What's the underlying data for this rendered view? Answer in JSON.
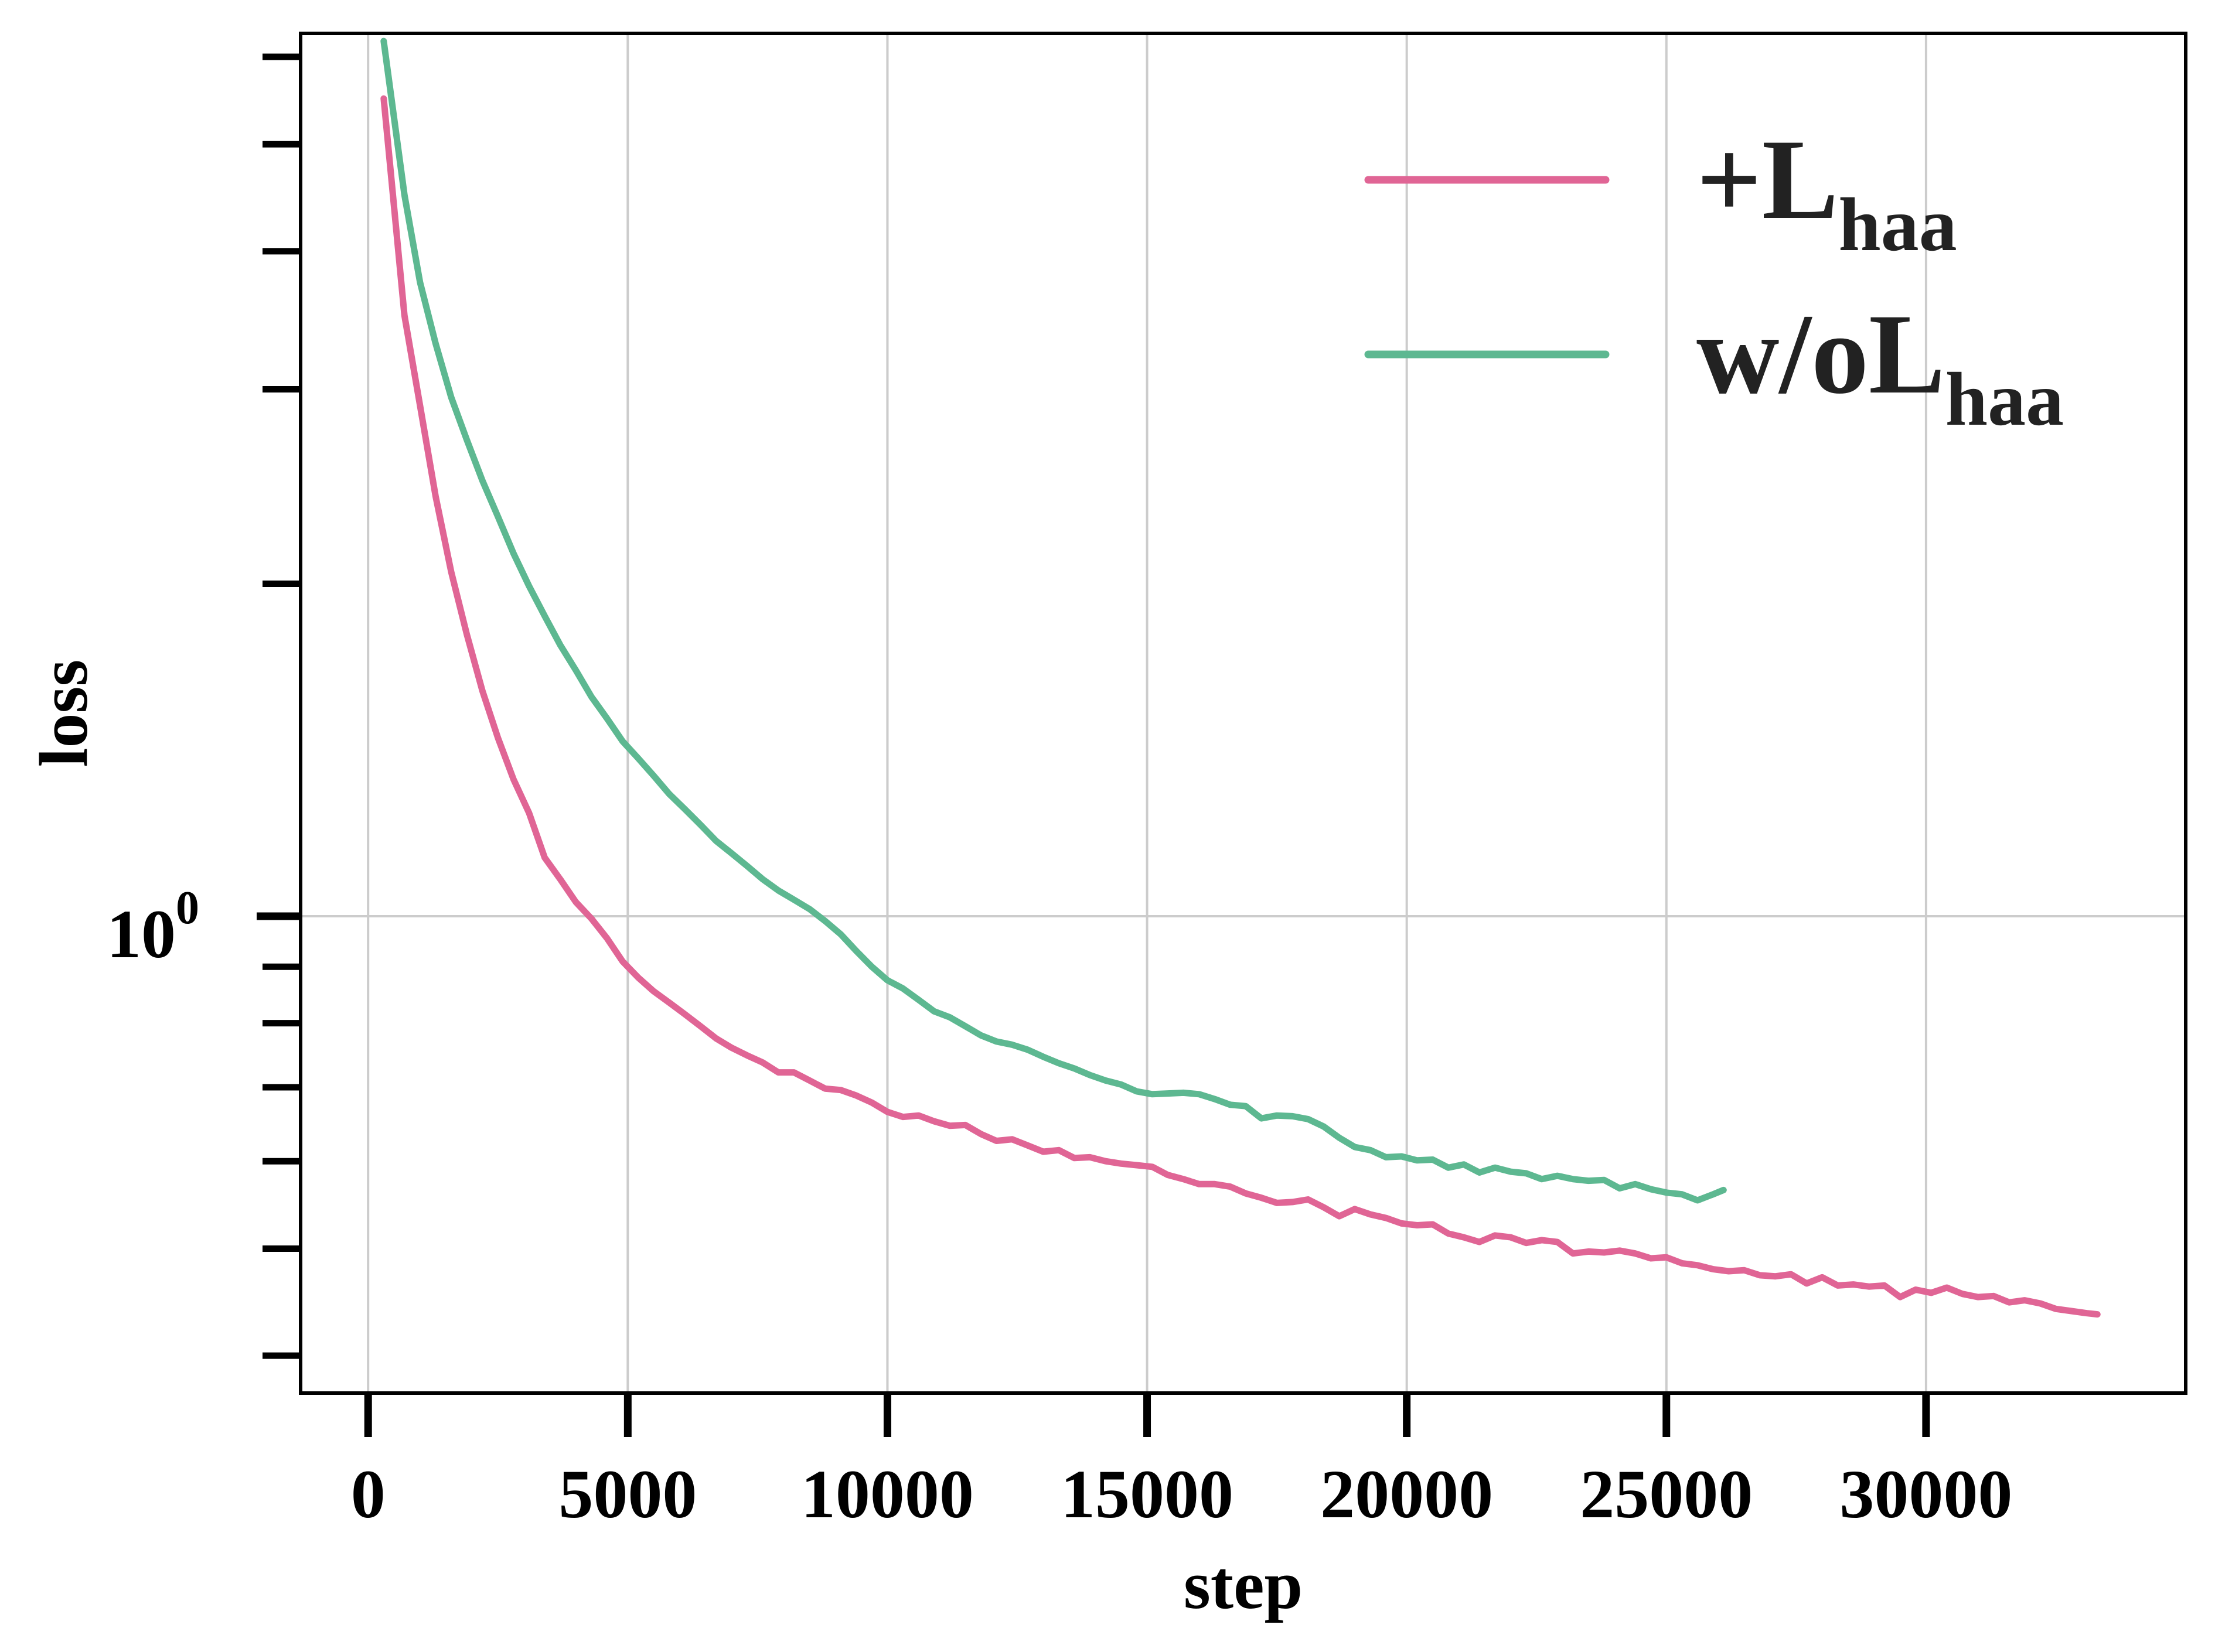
{
  "chart_data": {
    "type": "line",
    "xlabel": "step",
    "ylabel": "loss",
    "xlim": [
      -1300,
      35000
    ],
    "ylim": [
      0.37,
      6.3
    ],
    "y_scale": "log",
    "grid": true,
    "legend_position": "top-right",
    "x_ticks": [
      0,
      5000,
      10000,
      15000,
      20000,
      25000,
      30000
    ],
    "x_tick_labels": [
      "0",
      "5000",
      "10000",
      "15000",
      "20000",
      "25000",
      "30000"
    ],
    "y_major_tick": {
      "value": 1,
      "base": "10",
      "exponent": "0"
    },
    "y_minor_ticks": [
      0.4,
      0.5,
      0.6,
      0.7,
      0.8,
      0.9,
      2,
      3,
      4,
      5,
      6
    ],
    "series": [
      {
        "name": "+L",
        "name_subscript": "haa",
        "color": "#e06595",
        "x": [
          300,
          700,
          1000,
          1300,
          1600,
          1900,
          2200,
          2500,
          2800,
          3100,
          3400,
          3700,
          4000,
          4300,
          4600,
          4900,
          5200,
          5500,
          5800,
          6100,
          6400,
          6700,
          7000,
          7300,
          7600,
          7900,
          8200,
          8500,
          8800,
          9100,
          9400,
          9700,
          10000,
          10300,
          10600,
          10900,
          11200,
          11500,
          11800,
          12100,
          12400,
          12700,
          13000,
          13300,
          13600,
          13900,
          14200,
          14500,
          14800,
          15100,
          15400,
          15700,
          16000,
          16300,
          16600,
          16900,
          17200,
          17500,
          17800,
          18100,
          18400,
          18700,
          19000,
          19300,
          19600,
          19900,
          20200,
          20500,
          20800,
          21100,
          21400,
          21700,
          22000,
          22300,
          22600,
          22900,
          23200,
          23500,
          23800,
          24100,
          24400,
          24700,
          25000,
          25300,
          25600,
          25900,
          26200,
          26500,
          26800,
          27100,
          27400,
          27700,
          28000,
          28300,
          28600,
          28900,
          29200,
          29500,
          29800,
          30100,
          30400,
          30700,
          31000,
          31300,
          31600,
          31900,
          32200,
          32500,
          32800,
          33100,
          33300
        ],
        "values": [
          5.5,
          3.5,
          2.9,
          2.4,
          2.05,
          1.8,
          1.6,
          1.45,
          1.33,
          1.24,
          1.13,
          1.08,
          1.03,
          0.995,
          0.955,
          0.91,
          0.88,
          0.855,
          0.835,
          0.815,
          0.795,
          0.775,
          0.76,
          0.748,
          0.737,
          0.722,
          0.722,
          0.71,
          0.698,
          0.696,
          0.688,
          0.678,
          0.665,
          0.658,
          0.66,
          0.652,
          0.646,
          0.647,
          0.635,
          0.626,
          0.628,
          0.62,
          0.612,
          0.614,
          0.604,
          0.605,
          0.6,
          0.597,
          0.595,
          0.593,
          0.583,
          0.578,
          0.572,
          0.572,
          0.569,
          0.561,
          0.556,
          0.55,
          0.551,
          0.554,
          0.545,
          0.535,
          0.543,
          0.537,
          0.533,
          0.527,
          0.525,
          0.526,
          0.516,
          0.512,
          0.507,
          0.514,
          0.512,
          0.506,
          0.509,
          0.507,
          0.495,
          0.497,
          0.496,
          0.498,
          0.495,
          0.49,
          0.491,
          0.485,
          0.483,
          0.479,
          0.477,
          0.478,
          0.473,
          0.472,
          0.474,
          0.465,
          0.471,
          0.463,
          0.464,
          0.462,
          0.463,
          0.452,
          0.459,
          0.456,
          0.461,
          0.455,
          0.452,
          0.453,
          0.447,
          0.449,
          0.446,
          0.441,
          0.439,
          0.437,
          0.436
        ]
      },
      {
        "name": "w/oL",
        "name_subscript": "haa",
        "color": "#5db891",
        "x": [
          300,
          700,
          1000,
          1300,
          1600,
          1900,
          2200,
          2500,
          2800,
          3100,
          3400,
          3700,
          4000,
          4300,
          4600,
          4900,
          5200,
          5500,
          5800,
          6100,
          6400,
          6700,
          7000,
          7300,
          7600,
          7900,
          8200,
          8500,
          8800,
          9100,
          9400,
          9700,
          10000,
          10300,
          10600,
          10900,
          11200,
          11500,
          11800,
          12100,
          12400,
          12700,
          13000,
          13300,
          13600,
          13900,
          14200,
          14500,
          14800,
          15100,
          15400,
          15700,
          16000,
          16300,
          16600,
          16900,
          17200,
          17500,
          17800,
          18100,
          18400,
          18700,
          19000,
          19300,
          19600,
          19900,
          20200,
          20500,
          20800,
          21100,
          21400,
          21700,
          22000,
          22300,
          22600,
          22900,
          23200,
          23500,
          23800,
          24100,
          24400,
          24700,
          25000,
          25300,
          25600,
          25900,
          26100
        ],
        "values": [
          6.2,
          4.5,
          3.75,
          3.3,
          2.95,
          2.7,
          2.48,
          2.3,
          2.13,
          1.99,
          1.87,
          1.76,
          1.67,
          1.58,
          1.51,
          1.44,
          1.39,
          1.34,
          1.29,
          1.25,
          1.21,
          1.17,
          1.14,
          1.11,
          1.08,
          1.055,
          1.035,
          1.015,
          0.99,
          0.963,
          0.93,
          0.9,
          0.875,
          0.86,
          0.84,
          0.82,
          0.81,
          0.795,
          0.78,
          0.77,
          0.765,
          0.757,
          0.746,
          0.736,
          0.728,
          0.718,
          0.71,
          0.704,
          0.694,
          0.69,
          0.691,
          0.692,
          0.69,
          0.683,
          0.675,
          0.673,
          0.656,
          0.66,
          0.659,
          0.655,
          0.645,
          0.63,
          0.618,
          0.614,
          0.605,
          0.606,
          0.601,
          0.602,
          0.592,
          0.596,
          0.586,
          0.592,
          0.587,
          0.585,
          0.578,
          0.582,
          0.578,
          0.576,
          0.577,
          0.567,
          0.572,
          0.566,
          0.562,
          0.56,
          0.553,
          0.56,
          0.565
        ]
      }
    ]
  }
}
